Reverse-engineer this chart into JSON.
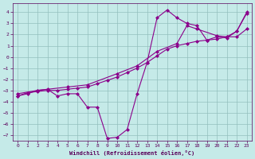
{
  "xlabel": "Windchill (Refroidissement éolien,°C)",
  "xlim": [
    -0.5,
    23.5
  ],
  "ylim": [
    -7.5,
    4.8
  ],
  "yticks": [
    4,
    3,
    2,
    1,
    0,
    -1,
    -2,
    -3,
    -4,
    -5,
    -6,
    -7
  ],
  "xticks": [
    0,
    1,
    2,
    3,
    4,
    5,
    6,
    7,
    8,
    9,
    10,
    11,
    12,
    13,
    14,
    15,
    16,
    17,
    18,
    19,
    20,
    21,
    22,
    23
  ],
  "background_color": "#c5eae8",
  "grid_color": "#93bfbd",
  "line_color": "#8b008b",
  "series1_x": [
    0,
    1,
    2,
    3,
    4,
    5,
    6,
    7,
    8,
    9,
    10,
    11,
    12,
    13,
    14,
    15,
    16,
    17,
    18,
    19,
    20,
    21,
    22,
    23
  ],
  "series1_y": [
    -3.5,
    -3.3,
    -3.0,
    -2.9,
    -3.5,
    -3.3,
    -3.3,
    -4.5,
    -4.5,
    -7.3,
    -7.2,
    -6.5,
    -3.3,
    -0.5,
    3.5,
    4.2,
    3.5,
    3.0,
    2.8,
    1.5,
    1.8,
    1.7,
    2.3,
    4.0
  ],
  "series2_x": [
    0,
    1,
    2,
    3,
    4,
    5,
    6,
    7,
    8,
    9,
    10,
    11,
    12,
    13,
    14,
    15,
    16,
    17,
    18,
    19,
    20,
    21,
    22,
    23
  ],
  "series2_y": [
    -3.5,
    -3.2,
    -3.1,
    -3.0,
    -3.0,
    -2.9,
    -2.8,
    -2.7,
    -2.4,
    -2.1,
    -1.8,
    -1.4,
    -1.0,
    -0.5,
    0.1,
    0.7,
    1.0,
    1.2,
    1.4,
    1.5,
    1.6,
    1.8,
    1.8,
    2.5
  ],
  "series3_x": [
    0,
    2,
    5,
    7,
    10,
    12,
    14,
    16,
    17,
    18,
    20,
    21,
    22,
    23
  ],
  "series3_y": [
    -3.3,
    -3.0,
    -2.7,
    -2.5,
    -1.5,
    -0.8,
    0.5,
    1.2,
    2.8,
    2.5,
    1.9,
    1.8,
    2.3,
    3.9
  ],
  "marker": "D",
  "markersize": 2.0,
  "linewidth": 0.8
}
